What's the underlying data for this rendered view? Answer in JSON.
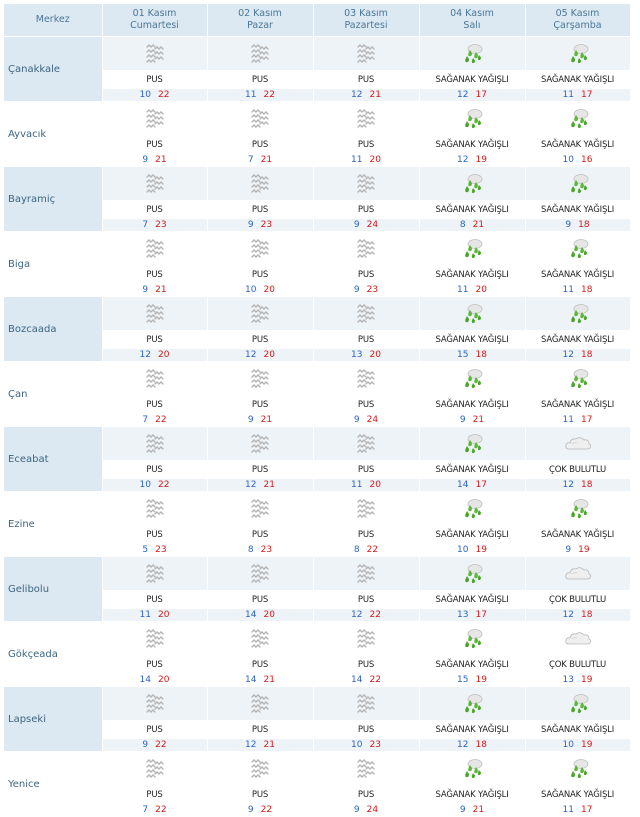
{
  "header": {
    "merkez_label": "Merkez",
    "days": [
      {
        "date": "01 Kasım",
        "weekday": "Cumartesi"
      },
      {
        "date": "02 Kasım",
        "weekday": "Pazar"
      },
      {
        "date": "03 Kasım",
        "weekday": "Pazartesi"
      },
      {
        "date": "04 Kasım",
        "weekday": "Salı"
      },
      {
        "date": "05 Kasım",
        "weekday": "Çarşamba"
      }
    ]
  },
  "colors": {
    "header_bg": "#dce8f2",
    "stripe_bg": "#eef3f7",
    "min_temp": "#2b64c2",
    "max_temp": "#d01c1c",
    "city_text": "#3d6680"
  },
  "rows": [
    {
      "city": "Çanakkale",
      "days": [
        {
          "icon": "fog-icon",
          "desc": "PUS",
          "min": "10",
          "max": "22"
        },
        {
          "icon": "fog-icon",
          "desc": "PUS",
          "min": "11",
          "max": "22"
        },
        {
          "icon": "fog-icon",
          "desc": "PUS",
          "min": "12",
          "max": "21"
        },
        {
          "icon": "shower-rain-icon",
          "desc": "SAĞANAK YAĞIŞLI",
          "min": "12",
          "max": "17"
        },
        {
          "icon": "shower-rain-icon",
          "desc": "SAĞANAK YAĞIŞLI",
          "min": "11",
          "max": "17"
        }
      ]
    },
    {
      "city": "Ayvacık",
      "days": [
        {
          "icon": "fog-icon",
          "desc": "PUS",
          "min": "9",
          "max": "21"
        },
        {
          "icon": "fog-icon",
          "desc": "PUS",
          "min": "7",
          "max": "21"
        },
        {
          "icon": "fog-icon",
          "desc": "PUS",
          "min": "11",
          "max": "20"
        },
        {
          "icon": "shower-rain-icon",
          "desc": "SAĞANAK YAĞIŞLI",
          "min": "12",
          "max": "19"
        },
        {
          "icon": "shower-rain-icon",
          "desc": "SAĞANAK YAĞIŞLI",
          "min": "10",
          "max": "16"
        }
      ]
    },
    {
      "city": "Bayramiç",
      "days": [
        {
          "icon": "fog-icon",
          "desc": "PUS",
          "min": "7",
          "max": "23"
        },
        {
          "icon": "fog-icon",
          "desc": "PUS",
          "min": "9",
          "max": "23"
        },
        {
          "icon": "fog-icon",
          "desc": "PUS",
          "min": "9",
          "max": "24"
        },
        {
          "icon": "shower-rain-icon",
          "desc": "SAĞANAK YAĞIŞLI",
          "min": "8",
          "max": "21"
        },
        {
          "icon": "shower-rain-icon",
          "desc": "SAĞANAK YAĞIŞLI",
          "min": "9",
          "max": "18"
        }
      ]
    },
    {
      "city": "Biga",
      "days": [
        {
          "icon": "fog-icon",
          "desc": "PUS",
          "min": "9",
          "max": "21"
        },
        {
          "icon": "fog-icon",
          "desc": "PUS",
          "min": "10",
          "max": "20"
        },
        {
          "icon": "fog-icon",
          "desc": "PUS",
          "min": "9",
          "max": "23"
        },
        {
          "icon": "shower-rain-icon",
          "desc": "SAĞANAK YAĞIŞLI",
          "min": "11",
          "max": "20"
        },
        {
          "icon": "shower-rain-icon",
          "desc": "SAĞANAK YAĞIŞLI",
          "min": "11",
          "max": "18"
        }
      ]
    },
    {
      "city": "Bozcaada",
      "days": [
        {
          "icon": "fog-icon",
          "desc": "PUS",
          "min": "12",
          "max": "20"
        },
        {
          "icon": "fog-icon",
          "desc": "PUS",
          "min": "12",
          "max": "20"
        },
        {
          "icon": "fog-icon",
          "desc": "PUS",
          "min": "13",
          "max": "20"
        },
        {
          "icon": "shower-rain-icon",
          "desc": "SAĞANAK YAĞIŞLI",
          "min": "15",
          "max": "18"
        },
        {
          "icon": "shower-rain-icon",
          "desc": "SAĞANAK YAĞIŞLI",
          "min": "12",
          "max": "18"
        }
      ]
    },
    {
      "city": "Çan",
      "days": [
        {
          "icon": "fog-icon",
          "desc": "PUS",
          "min": "7",
          "max": "22"
        },
        {
          "icon": "fog-icon",
          "desc": "PUS",
          "min": "9",
          "max": "21"
        },
        {
          "icon": "fog-icon",
          "desc": "PUS",
          "min": "9",
          "max": "24"
        },
        {
          "icon": "shower-rain-icon",
          "desc": "SAĞANAK YAĞIŞLI",
          "min": "9",
          "max": "21"
        },
        {
          "icon": "shower-rain-icon",
          "desc": "SAĞANAK YAĞIŞLI",
          "min": "11",
          "max": "17"
        }
      ]
    },
    {
      "city": "Eceabat",
      "days": [
        {
          "icon": "fog-icon",
          "desc": "PUS",
          "min": "10",
          "max": "22"
        },
        {
          "icon": "fog-icon",
          "desc": "PUS",
          "min": "12",
          "max": "21"
        },
        {
          "icon": "fog-icon",
          "desc": "PUS",
          "min": "11",
          "max": "20"
        },
        {
          "icon": "shower-rain-icon",
          "desc": "SAĞANAK YAĞIŞLI",
          "min": "14",
          "max": "17"
        },
        {
          "icon": "cloudy-icon",
          "desc": "ÇOK BULUTLU",
          "min": "12",
          "max": "18"
        }
      ]
    },
    {
      "city": "Ezine",
      "days": [
        {
          "icon": "fog-icon",
          "desc": "PUS",
          "min": "5",
          "max": "23"
        },
        {
          "icon": "fog-icon",
          "desc": "PUS",
          "min": "8",
          "max": "23"
        },
        {
          "icon": "fog-icon",
          "desc": "PUS",
          "min": "8",
          "max": "22"
        },
        {
          "icon": "shower-rain-icon",
          "desc": "SAĞANAK YAĞIŞLI",
          "min": "10",
          "max": "19"
        },
        {
          "icon": "shower-rain-icon",
          "desc": "SAĞANAK YAĞIŞLI",
          "min": "9",
          "max": "19"
        }
      ]
    },
    {
      "city": "Gelibolu",
      "days": [
        {
          "icon": "fog-icon",
          "desc": "PUS",
          "min": "11",
          "max": "20"
        },
        {
          "icon": "fog-icon",
          "desc": "PUS",
          "min": "14",
          "max": "20"
        },
        {
          "icon": "fog-icon",
          "desc": "PUS",
          "min": "12",
          "max": "22"
        },
        {
          "icon": "shower-rain-icon",
          "desc": "SAĞANAK YAĞIŞLI",
          "min": "13",
          "max": "17"
        },
        {
          "icon": "cloudy-icon",
          "desc": "ÇOK BULUTLU",
          "min": "12",
          "max": "18"
        }
      ]
    },
    {
      "city": "Gökçeada",
      "days": [
        {
          "icon": "fog-icon",
          "desc": "PUS",
          "min": "14",
          "max": "20"
        },
        {
          "icon": "fog-icon",
          "desc": "PUS",
          "min": "14",
          "max": "21"
        },
        {
          "icon": "fog-icon",
          "desc": "PUS",
          "min": "14",
          "max": "22"
        },
        {
          "icon": "shower-rain-icon",
          "desc": "SAĞANAK YAĞIŞLI",
          "min": "15",
          "max": "19"
        },
        {
          "icon": "cloudy-icon",
          "desc": "ÇOK BULUTLU",
          "min": "13",
          "max": "19"
        }
      ]
    },
    {
      "city": "Lapseki",
      "days": [
        {
          "icon": "fog-icon",
          "desc": "PUS",
          "min": "9",
          "max": "22"
        },
        {
          "icon": "fog-icon",
          "desc": "PUS",
          "min": "12",
          "max": "21"
        },
        {
          "icon": "fog-icon",
          "desc": "PUS",
          "min": "10",
          "max": "23"
        },
        {
          "icon": "shower-rain-icon",
          "desc": "SAĞANAK YAĞIŞLI",
          "min": "12",
          "max": "18"
        },
        {
          "icon": "shower-rain-icon",
          "desc": "SAĞANAK YAĞIŞLI",
          "min": "10",
          "max": "19"
        }
      ]
    },
    {
      "city": "Yenice",
      "days": [
        {
          "icon": "fog-icon",
          "desc": "PUS",
          "min": "7",
          "max": "22"
        },
        {
          "icon": "fog-icon",
          "desc": "PUS",
          "min": "9",
          "max": "22"
        },
        {
          "icon": "fog-icon",
          "desc": "PUS",
          "min": "9",
          "max": "24"
        },
        {
          "icon": "shower-rain-icon",
          "desc": "SAĞANAK YAĞIŞLI",
          "min": "9",
          "max": "21"
        },
        {
          "icon": "shower-rain-icon",
          "desc": "SAĞANAK YAĞIŞLI",
          "min": "11",
          "max": "17"
        }
      ]
    }
  ]
}
